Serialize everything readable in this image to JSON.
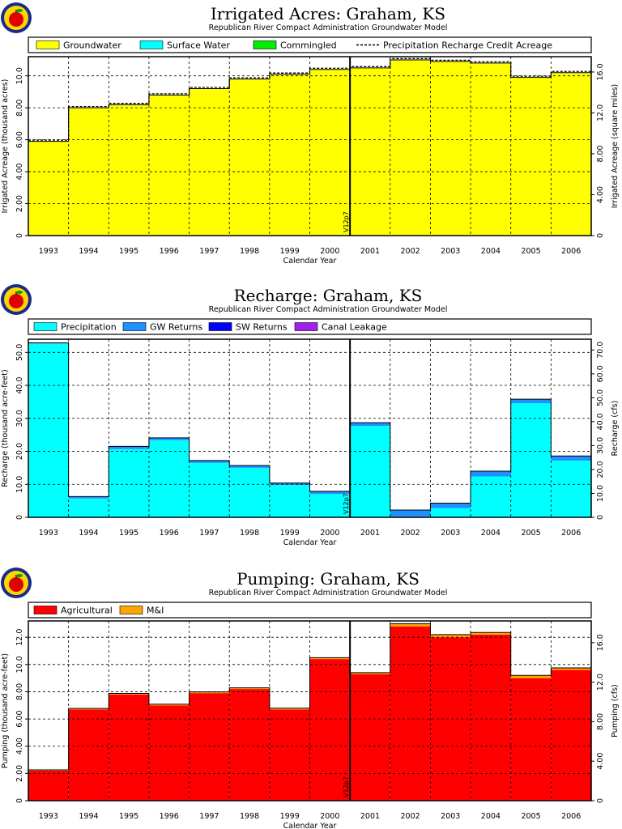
{
  "colors": {
    "groundwater": "#ffff00",
    "surface_water": "#00ffff",
    "commingled": "#00ee00",
    "precipitation": "#00ffff",
    "gw_returns": "#1e90ff",
    "sw_returns": "#0000ff",
    "canal_leakage": "#a020f0",
    "agricultural": "#ff0000",
    "mi": "#ffa500"
  },
  "chart_data": [
    {
      "type": "bar",
      "title": "Irrigated Acres: Graham, KS",
      "subtitle": "Republican River Compact Administration Groundwater Model",
      "xlabel": "Calendar Year",
      "ylabel": "Irrigated Acreage (thousand acres)",
      "ylabel_right": "Irrigated Acreage (square miles)",
      "categories": [
        "1993",
        "1994",
        "1995",
        "1996",
        "1997",
        "1998",
        "1999",
        "2000",
        "2001",
        "2002",
        "2003",
        "2004",
        "2005",
        "2006"
      ],
      "ylim": [
        0,
        11.2
      ],
      "yticks": [
        0,
        2.0,
        4.0,
        6.0,
        8.0,
        10.0
      ],
      "ytick_labels": [
        "0",
        "2.00",
        "4.00",
        "6.00",
        "8.00",
        "10.0"
      ],
      "ylim_right": [
        0,
        17.5
      ],
      "yticks_right": [
        0,
        4.0,
        8.0,
        12.0,
        16.0
      ],
      "ytick_right_labels": [
        "0",
        "4.00",
        "8.00",
        "12.0",
        "16.0"
      ],
      "series": [
        {
          "name": "Groundwater",
          "color_key": "groundwater",
          "values": [
            5.9,
            8.0,
            8.2,
            8.8,
            9.2,
            9.8,
            10.1,
            10.4,
            10.5,
            11.0,
            10.9,
            10.8,
            9.9,
            10.2
          ]
        },
        {
          "name": "Surface Water",
          "color_key": "surface_water",
          "values": [
            0,
            0,
            0,
            0,
            0,
            0,
            0,
            0,
            0,
            0,
            0,
            0,
            0,
            0
          ]
        },
        {
          "name": "Commingled",
          "color_key": "commingled",
          "values": [
            0,
            0,
            0,
            0,
            0,
            0,
            0,
            0,
            0,
            0,
            0,
            0,
            0,
            0
          ]
        },
        {
          "name": "Precipitation Recharge Credit Acreage",
          "style": "dashed",
          "values": [
            5.9,
            8.0,
            8.2,
            8.8,
            9.2,
            9.8,
            10.1,
            10.4,
            10.5,
            11.0,
            10.9,
            10.8,
            9.9,
            10.2
          ]
        }
      ],
      "marker": {
        "label": "V12p7",
        "after_category": "2000"
      },
      "grid": true,
      "legend_position": "top"
    },
    {
      "type": "bar",
      "title": "Recharge: Graham, KS",
      "subtitle": "Republican River Compact Administration Groundwater Model",
      "xlabel": "Calendar Year",
      "ylabel": "Recharge (thousand acre-feet)",
      "ylabel_right": "Recharge (cfs)",
      "categories": [
        "1993",
        "1994",
        "1995",
        "1996",
        "1997",
        "1998",
        "1999",
        "2000",
        "2001",
        "2002",
        "2003",
        "2004",
        "2005",
        "2006"
      ],
      "ylim": [
        0,
        54
      ],
      "yticks": [
        0,
        10.0,
        20.0,
        30.0,
        40.0,
        50.0
      ],
      "ytick_labels": [
        "0",
        "10.0",
        "20.0",
        "30.0",
        "40.0",
        "50.0"
      ],
      "ylim_right": [
        0,
        74.5
      ],
      "yticks_right": [
        0,
        10.0,
        20.0,
        30.0,
        40.0,
        50.0,
        60.0,
        70.0
      ],
      "ytick_right_labels": [
        "0",
        "10.0",
        "20.0",
        "30.0",
        "40.0",
        "50.0",
        "60.0",
        "70.0"
      ],
      "series": [
        {
          "name": "Precipitation",
          "color_key": "precipitation",
          "values": [
            52.7,
            5.7,
            20.7,
            23.4,
            16.5,
            15.0,
            9.8,
            7.1,
            27.7,
            0.2,
            2.8,
            12.4,
            34.6,
            17.2
          ]
        },
        {
          "name": "GW Returns",
          "color_key": "gw_returns",
          "values": [
            0.2,
            0.6,
            0.8,
            0.7,
            0.7,
            0.7,
            0.6,
            0.8,
            1.0,
            2.0,
            1.5,
            1.6,
            1.2,
            1.4
          ]
        },
        {
          "name": "SW Returns",
          "color_key": "sw_returns",
          "values": [
            0,
            0,
            0,
            0,
            0,
            0,
            0,
            0,
            0,
            0,
            0,
            0,
            0,
            0
          ]
        },
        {
          "name": "Canal Leakage",
          "color_key": "canal_leakage",
          "values": [
            0,
            0,
            0,
            0,
            0,
            0,
            0,
            0,
            0,
            0,
            0,
            0,
            0,
            0
          ]
        }
      ],
      "marker": {
        "label": "V12p7",
        "after_category": "2000"
      },
      "grid": true,
      "legend_position": "top"
    },
    {
      "type": "bar",
      "title": "Pumping: Graham, KS",
      "subtitle": "Republican River Compact Administration Groundwater Model",
      "xlabel": "Calendar Year",
      "ylabel": "Pumping (thousand acre-feet)",
      "ylabel_right": "Pumping (cfs)",
      "categories": [
        "1993",
        "1994",
        "1995",
        "1996",
        "1997",
        "1998",
        "1999",
        "2000",
        "2001",
        "2002",
        "2003",
        "2004",
        "2005",
        "2006"
      ],
      "ylim": [
        0,
        13.2
      ],
      "yticks": [
        0,
        2.0,
        4.0,
        6.0,
        8.0,
        10.0,
        12.0
      ],
      "ytick_labels": [
        "0",
        "2.00",
        "4.00",
        "6.00",
        "8.00",
        "10.0",
        "12.0"
      ],
      "ylim_right": [
        0,
        18.2
      ],
      "yticks_right": [
        0,
        4.0,
        8.0,
        12.0,
        16.0
      ],
      "ytick_right_labels": [
        "0",
        "4.00",
        "8.00",
        "12.0",
        "16.0"
      ],
      "series": [
        {
          "name": "Agricultural",
          "color_key": "agricultural",
          "values": [
            2.2,
            6.7,
            7.8,
            7.0,
            7.9,
            8.2,
            6.7,
            10.4,
            9.3,
            12.8,
            12.0,
            12.2,
            9.0,
            9.6
          ]
        },
        {
          "name": "M&I",
          "color_key": "mi",
          "values": [
            0.06,
            0.07,
            0.08,
            0.08,
            0.09,
            0.09,
            0.09,
            0.1,
            0.1,
            0.2,
            0.2,
            0.15,
            0.2,
            0.15
          ]
        }
      ],
      "marker": {
        "label": "V12p7",
        "after_category": "2000"
      },
      "grid": true,
      "legend_position": "top"
    }
  ]
}
